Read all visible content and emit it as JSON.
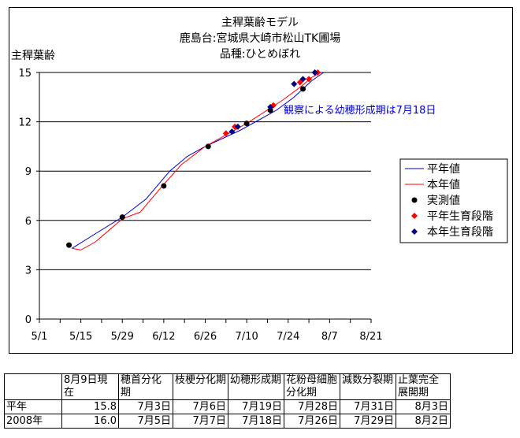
{
  "chart_data": {
    "type": "line",
    "title_lines": [
      "主稈葉齢モデル",
      "鹿島台:宮城県大崎市松山TK圃場",
      "品種:ひとめぼれ"
    ],
    "ylabel": "主稈葉齢",
    "ylim": [
      0,
      15
    ],
    "yticks": [
      0,
      3,
      6,
      9,
      12,
      15
    ],
    "xlim": [
      "5/1",
      "8/21"
    ],
    "xtick_labels": [
      "5/1",
      "5/15",
      "5/29",
      "6/12",
      "6/26",
      "7/10",
      "7/24",
      "8/7",
      "8/21"
    ],
    "grid": "horizontal",
    "legend_position": "right",
    "annotation": "観察による幼穂形成期は7月18日",
    "series": [
      {
        "name": "平年値",
        "kind": "line",
        "color": "#0000cc",
        "points": [
          [
            "5/12",
            4.3
          ],
          [
            "5/20",
            5.2
          ],
          [
            "5/29",
            6.2
          ],
          [
            "6/6",
            7.3
          ],
          [
            "6/14",
            9.0
          ],
          [
            "6/20",
            9.9
          ],
          [
            "6/26",
            10.5
          ],
          [
            "7/2",
            11.0
          ],
          [
            "7/8",
            11.5
          ],
          [
            "7/14",
            12.1
          ],
          [
            "7/20",
            12.7
          ],
          [
            "7/26",
            13.5
          ],
          [
            "8/1",
            14.5
          ],
          [
            "8/5",
            15.0
          ]
        ]
      },
      {
        "name": "本年値",
        "kind": "line",
        "color": "#ff0000",
        "points": [
          [
            "5/12",
            4.3
          ],
          [
            "5/15",
            4.2
          ],
          [
            "5/20",
            4.7
          ],
          [
            "5/29",
            6.1
          ],
          [
            "6/4",
            6.5
          ],
          [
            "6/12",
            8.2
          ],
          [
            "6/18",
            9.4
          ],
          [
            "6/26",
            10.5
          ],
          [
            "7/4",
            11.3
          ],
          [
            "7/10",
            11.9
          ],
          [
            "7/16",
            12.6
          ],
          [
            "7/22",
            13.3
          ],
          [
            "7/28",
            14.1
          ],
          [
            "8/1",
            14.7
          ],
          [
            "8/5",
            15.1
          ]
        ]
      },
      {
        "name": "実測値",
        "kind": "marker",
        "marker": "circle",
        "color": "#000000",
        "points": [
          [
            "5/11",
            4.5
          ],
          [
            "5/29",
            6.2
          ],
          [
            "6/12",
            8.1
          ],
          [
            "6/27",
            10.5
          ],
          [
            "7/10",
            11.9
          ],
          [
            "7/18",
            12.7
          ],
          [
            "7/29",
            14.0
          ]
        ]
      },
      {
        "name": "平年生育段階",
        "kind": "marker",
        "marker": "diamond",
        "color": "#ff0000",
        "points": [
          [
            "7/3",
            11.3
          ],
          [
            "7/6",
            11.7
          ],
          [
            "7/19",
            13.0
          ],
          [
            "7/28",
            14.4
          ],
          [
            "7/31",
            14.6
          ],
          [
            "8/3",
            15.0
          ]
        ]
      },
      {
        "name": "本年生育段階",
        "kind": "marker",
        "marker": "diamond",
        "color": "#000080",
        "points": [
          [
            "7/5",
            11.4
          ],
          [
            "7/7",
            11.7
          ],
          [
            "7/18",
            12.9
          ],
          [
            "7/26",
            14.3
          ],
          [
            "7/29",
            14.6
          ],
          [
            "8/2",
            15.0
          ]
        ]
      }
    ]
  },
  "table": {
    "headers": [
      "",
      "8月9日現在",
      "穂首分化期",
      "枝梗分化期",
      "幼穂形成期",
      "花粉母細胞分化期",
      "減数分裂期",
      "止葉完全展開期"
    ],
    "rows": [
      [
        "平年",
        "15.8",
        "7月3日",
        "7月6日",
        "7月19日",
        "7月28日",
        "7月31日",
        "8月3日"
      ],
      [
        "2008年",
        "16.0",
        "7月5日",
        "7月7日",
        "7月18日",
        "7月26日",
        "7月29日",
        "8月2日"
      ]
    ]
  }
}
